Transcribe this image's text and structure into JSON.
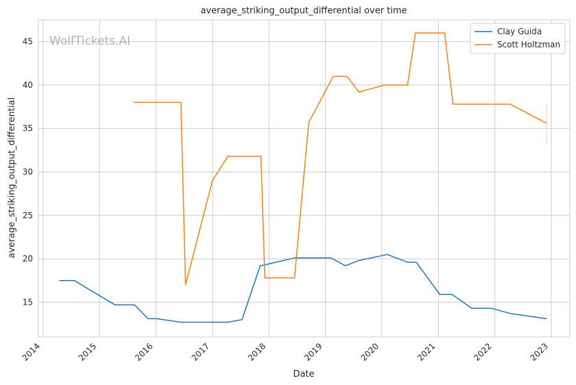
{
  "chart_data": {
    "type": "line",
    "title": "average_striking_output_differential over time",
    "xlabel": "Date",
    "ylabel": "average_striking_output_differential",
    "watermark": "WolfTickets.AI",
    "x_ticks": [
      "2014",
      "2015",
      "2016",
      "2017",
      "2018",
      "2019",
      "2020",
      "2021",
      "2022",
      "2023"
    ],
    "y_ticks": [
      15,
      20,
      25,
      30,
      35,
      40,
      45
    ],
    "xlim": [
      "2013-12-01",
      "2023-05-01"
    ],
    "ylim": [
      11,
      47.5
    ],
    "grid": true,
    "legend_position": "top-right",
    "series": [
      {
        "name": "Clay Guida",
        "color": "#1f77b4",
        "points": [
          [
            "2014-04-15",
            17.5
          ],
          [
            "2014-07-20",
            17.5
          ],
          [
            "2015-04-10",
            14.7
          ],
          [
            "2015-08-15",
            14.7
          ],
          [
            "2015-11-10",
            13.1
          ],
          [
            "2016-01-05",
            13.1
          ],
          [
            "2016-06-10",
            12.7
          ],
          [
            "2017-04-10",
            12.7
          ],
          [
            "2017-07-10",
            13.0
          ],
          [
            "2017-11-05",
            19.2
          ],
          [
            "2017-12-05",
            19.3
          ],
          [
            "2018-06-15",
            20.1
          ],
          [
            "2019-02-05",
            20.1
          ],
          [
            "2019-05-10",
            19.2
          ],
          [
            "2019-08-05",
            19.8
          ],
          [
            "2020-02-05",
            20.5
          ],
          [
            "2020-06-15",
            19.6
          ],
          [
            "2020-08-10",
            19.6
          ],
          [
            "2021-01-10",
            15.9
          ],
          [
            "2021-03-30",
            15.9
          ],
          [
            "2021-08-05",
            14.3
          ],
          [
            "2021-12-10",
            14.3
          ],
          [
            "2022-04-10",
            13.7
          ],
          [
            "2022-12-01",
            13.1
          ]
        ]
      },
      {
        "name": "Scott Holtzman",
        "color": "#ff7f0e",
        "points": [
          [
            "2015-08-10",
            38.0
          ],
          [
            "2016-06-10",
            38.0
          ],
          [
            "2016-07-10",
            17.0
          ],
          [
            "2016-12-31",
            29.0
          ],
          [
            "2017-04-10",
            31.8
          ],
          [
            "2017-11-10",
            31.8
          ],
          [
            "2017-12-05",
            17.8
          ],
          [
            "2018-06-15",
            17.8
          ],
          [
            "2018-09-15",
            35.7
          ],
          [
            "2019-02-20",
            41.0
          ],
          [
            "2019-05-20",
            41.0
          ],
          [
            "2019-08-05",
            39.2
          ],
          [
            "2020-01-20",
            40.0
          ],
          [
            "2020-06-15",
            40.0
          ],
          [
            "2020-08-05",
            46.0
          ],
          [
            "2021-02-10",
            46.0
          ],
          [
            "2021-04-05",
            37.8
          ],
          [
            "2022-04-10",
            37.8
          ],
          [
            "2022-12-01",
            35.6
          ]
        ],
        "error_bar": {
          "x": "2022-12-01",
          "low": 33.3,
          "high": 37.9
        }
      }
    ]
  }
}
